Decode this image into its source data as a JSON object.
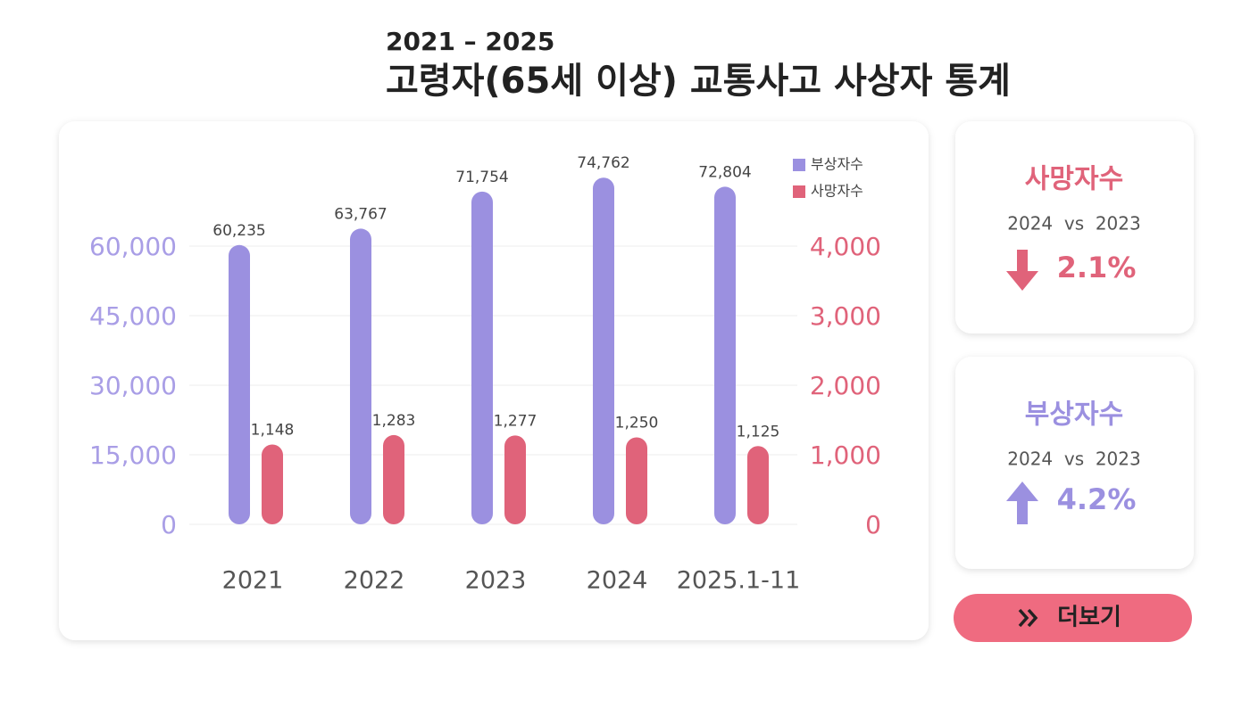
{
  "chart_data": {
    "type": "bar",
    "subtitle": "2021 – 2025",
    "title": "고령자(65세 이상) 교통사고 사상자 통계",
    "categories": [
      "2021",
      "2022",
      "2023",
      "2024",
      "2025.1-11"
    ],
    "series": [
      {
        "name": "부상자수",
        "color": "#9b90e0",
        "values": [
          60235,
          63767,
          71754,
          74762,
          72804
        ],
        "value_labels": [
          "60,235",
          "63,767",
          "71,754",
          "74,762",
          "72,804"
        ]
      },
      {
        "name": "사망자수",
        "color": "#e0637a",
        "axis": "y2",
        "values": [
          1148,
          1283,
          1277,
          1250,
          1125
        ],
        "value_labels": [
          "1,148",
          "1,283",
          "1,277",
          "1,250",
          "1,125"
        ]
      }
    ],
    "ylim": [
      0,
      75000
    ],
    "yticks": [
      0,
      {
        "value": 15000,
        "label": "15,000"
      },
      {
        "value": 30000,
        "label": "30,000"
      },
      {
        "value": 45000,
        "label": "45,000"
      },
      {
        "value": 60000,
        "label": "60,000"
      }
    ],
    "y2lim": [
      0,
      5000
    ],
    "y2ticks": [
      0,
      {
        "value": 1000,
        "label": "1,000"
      },
      {
        "value": 2000,
        "label": "2,000"
      },
      {
        "value": 3000,
        "label": "3,000"
      },
      {
        "value": 4000,
        "label": "4,000"
      }
    ],
    "grid": true,
    "legend": "upper right"
  },
  "cards": [
    {
      "title": "사망자수",
      "comparison": "2024  vs  2023",
      "change": "2.1%"
    },
    {
      "title": "부상자수",
      "comparison": "2024  vs  2023",
      "change": "4.2%"
    }
  ],
  "button": "더보기"
}
